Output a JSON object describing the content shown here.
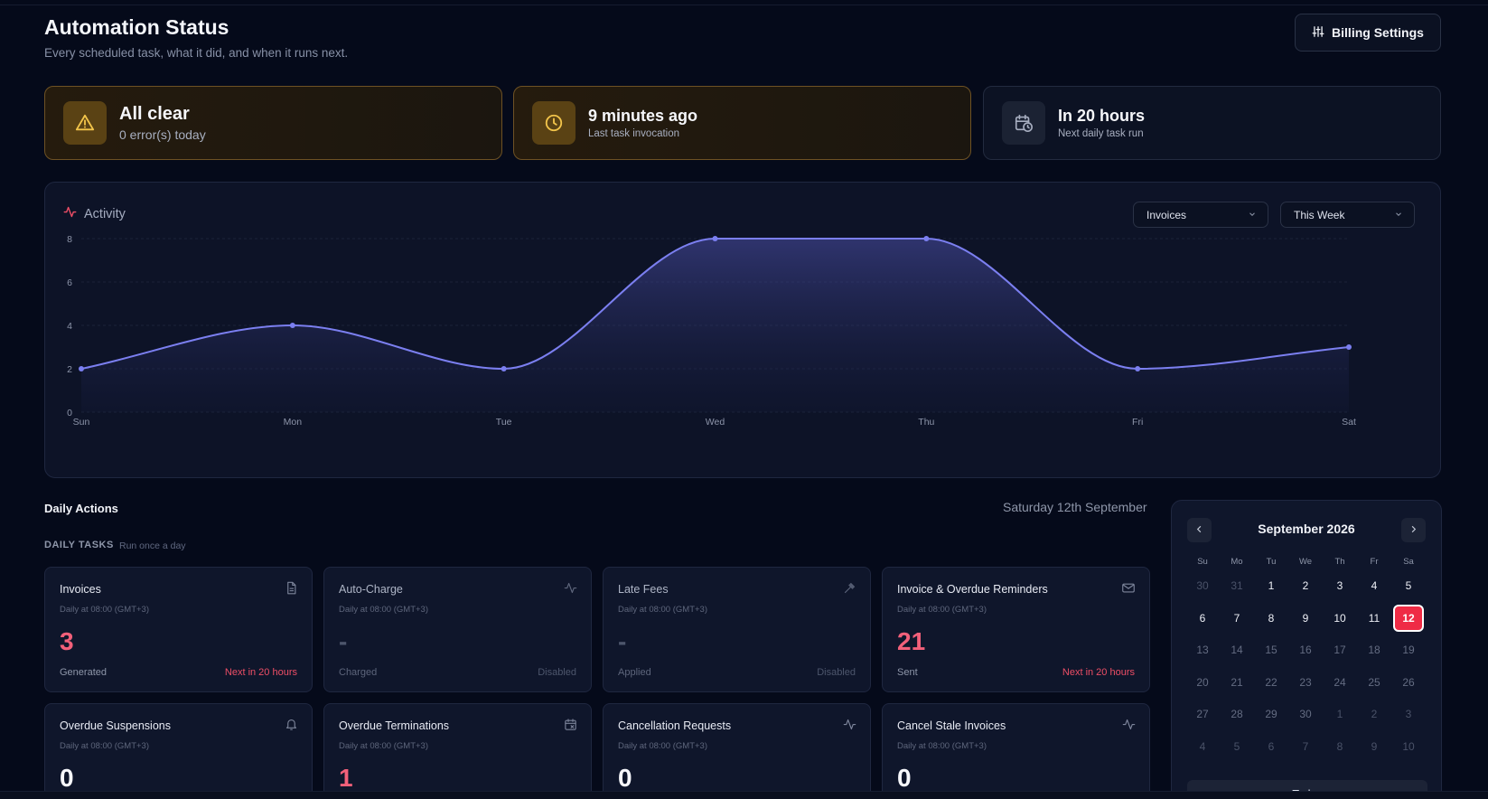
{
  "header": {
    "title": "Automation Status",
    "subtitle": "Every scheduled task, what it did, and when it runs next.",
    "billing_button": "Billing Settings"
  },
  "stats": [
    {
      "title": "All clear",
      "subtitle": "0 error(s) today",
      "icon": "alert-triangle-icon",
      "accent": "#e8b63a"
    },
    {
      "title": "9 minutes ago",
      "subtitle": "Last task invocation",
      "icon": "clock-icon",
      "accent": "#e8b63a"
    },
    {
      "title": "In 20 hours",
      "subtitle": "Next daily task run",
      "icon": "calendar-clock-icon",
      "accent": "#9aa3b8"
    }
  ],
  "activity": {
    "title": "Activity",
    "icon": "activity-icon",
    "filter_type": "Invoices",
    "filter_range": "This Week"
  },
  "chart_data": {
    "type": "area",
    "categories": [
      "Sun",
      "Mon",
      "Tue",
      "Wed",
      "Thu",
      "Fri",
      "Sat"
    ],
    "values": [
      2,
      4,
      2,
      8,
      8,
      2,
      3
    ],
    "yticks": [
      0,
      2,
      4,
      6,
      8
    ],
    "ylim": [
      0,
      8
    ],
    "title": "",
    "xlabel": "",
    "ylabel": "",
    "grid": true,
    "color": "#7b7ff0"
  },
  "daily": {
    "title": "Daily Actions",
    "date": "Saturday 12th September",
    "tasks_heading": "DAILY TASKS",
    "tasks_sub": "Run once a day"
  },
  "tasks": [
    {
      "name": "Invoices",
      "schedule": "Daily at 08:00 (GMT+3)",
      "value": "3",
      "label": "Generated",
      "status": "Next in 20 hours",
      "icon": "file-text-icon"
    },
    {
      "name": "Auto-Charge",
      "schedule": "Daily at 08:00 (GMT+3)",
      "value": "-",
      "label": "Charged",
      "status": "Disabled",
      "icon": "activity-icon"
    },
    {
      "name": "Late Fees",
      "schedule": "Daily at 08:00 (GMT+3)",
      "value": "-",
      "label": "Applied",
      "status": "Disabled",
      "icon": "gavel-icon"
    },
    {
      "name": "Invoice & Overdue Reminders",
      "schedule": "Daily at 08:00 (GMT+3)",
      "value": "21",
      "label": "Sent",
      "status": "Next in 20 hours",
      "icon": "mail-icon"
    },
    {
      "name": "Overdue Suspensions",
      "schedule": "Daily at 08:00 (GMT+3)",
      "value": "0",
      "icon": "bell-icon"
    },
    {
      "name": "Overdue Terminations",
      "schedule": "Daily at 08:00 (GMT+3)",
      "value": "1",
      "icon": "calendar-x-icon"
    },
    {
      "name": "Cancellation Requests",
      "schedule": "Daily at 08:00 (GMT+3)",
      "value": "0",
      "icon": "activity-icon"
    },
    {
      "name": "Cancel Stale Invoices",
      "schedule": "Daily at 08:00 (GMT+3)",
      "value": "0",
      "icon": "activity-icon"
    }
  ],
  "calendar": {
    "month": "September 2026",
    "weekdays": [
      "Su",
      "Mo",
      "Tu",
      "We",
      "Th",
      "Fr",
      "Sa"
    ],
    "weeks": [
      [
        "30",
        "31",
        "1",
        "2",
        "3",
        "4",
        "5"
      ],
      [
        "6",
        "7",
        "8",
        "9",
        "10",
        "11",
        "12"
      ],
      [
        "13",
        "14",
        "15",
        "16",
        "17",
        "18",
        "19"
      ],
      [
        "20",
        "21",
        "22",
        "23",
        "24",
        "25",
        "26"
      ],
      [
        "27",
        "28",
        "29",
        "30",
        "1",
        "2",
        "3"
      ],
      [
        "4",
        "5",
        "6",
        "7",
        "8",
        "9",
        "10"
      ]
    ],
    "today": "12",
    "today_button": "Today"
  }
}
